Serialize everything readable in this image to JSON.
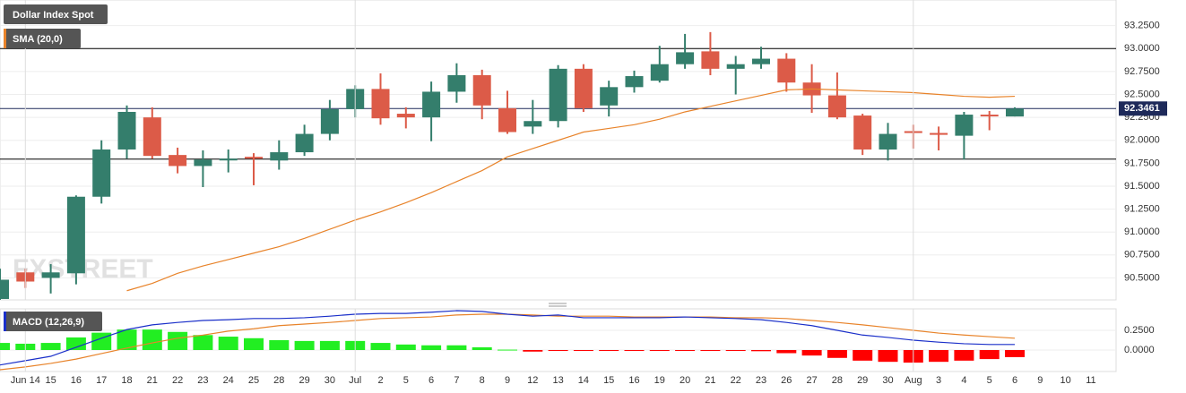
{
  "chart_data": [
    {
      "type": "candlestick",
      "title": "Dollar Index Spot",
      "watermark": "FXSTREET",
      "up_color": "#347e6c",
      "down_color": "#dc5b48",
      "open": [
        90.27,
        90.56,
        90.5,
        90.55,
        91.385,
        91.9,
        92.25,
        91.84,
        91.72,
        91.79,
        91.82,
        91.78,
        91.87,
        92.07,
        92.34,
        92.56,
        92.29,
        92.25,
        92.53,
        92.71,
        92.35,
        92.15,
        92.21,
        92.78,
        92.38,
        92.58,
        92.65,
        92.83,
        92.97,
        92.78,
        92.83,
        92.89,
        92.63,
        92.49,
        92.27,
        91.9,
        92.1,
        92.08,
        92.05,
        92.28,
        92.26,
        null,
        null,
        null
      ],
      "high": [
        90.6,
        90.6,
        90.65,
        91.4,
        92.0,
        92.38,
        92.36,
        91.92,
        91.89,
        91.9,
        91.86,
        92.0,
        92.17,
        92.44,
        92.6,
        92.73,
        92.36,
        92.64,
        92.84,
        92.77,
        92.54,
        92.44,
        92.82,
        92.83,
        92.65,
        92.76,
        93.03,
        93.16,
        93.18,
        92.92,
        93.02,
        92.95,
        92.83,
        92.74,
        92.29,
        92.19,
        92.17,
        92.15,
        92.31,
        92.32,
        92.36,
        null,
        null,
        null
      ],
      "low": [
        90.26,
        90.39,
        90.33,
        90.43,
        91.31,
        91.8,
        91.8,
        91.64,
        91.49,
        91.65,
        91.51,
        91.68,
        91.83,
        92.0,
        92.25,
        92.17,
        92.13,
        91.99,
        92.41,
        92.23,
        92.07,
        92.07,
        92.14,
        92.31,
        92.26,
        92.52,
        92.63,
        92.78,
        92.71,
        92.5,
        92.78,
        92.53,
        92.3,
        92.23,
        91.84,
        91.78,
        91.91,
        91.89,
        91.79,
        92.11,
        92.26,
        null,
        null,
        null
      ],
      "close": [
        90.48,
        90.46,
        90.56,
        91.385,
        91.9,
        92.31,
        91.83,
        91.72,
        91.79,
        91.8,
        91.8,
        91.87,
        92.07,
        92.34,
        92.56,
        92.24,
        92.25,
        92.53,
        92.71,
        92.38,
        92.09,
        92.21,
        92.78,
        92.35,
        92.58,
        92.7,
        92.83,
        92.96,
        92.78,
        92.83,
        92.89,
        92.63,
        92.49,
        92.25,
        91.9,
        92.07,
        92.08,
        92.06,
        92.28,
        92.27,
        92.3461,
        null,
        null,
        null
      ],
      "overlay": {
        "name": "SMA (20,0)",
        "color": "#e8832a",
        "values": [
          null,
          null,
          null,
          null,
          null,
          90.36,
          90.44,
          90.55,
          90.63,
          90.7,
          90.77,
          90.84,
          90.93,
          91.03,
          91.13,
          91.22,
          91.32,
          91.43,
          91.55,
          91.67,
          91.82,
          91.91,
          92.0,
          92.09,
          92.13,
          92.17,
          92.23,
          92.31,
          92.37,
          92.43,
          92.49,
          92.55,
          92.56,
          92.55,
          92.54,
          92.53,
          92.52,
          92.5,
          92.48,
          92.47,
          92.48,
          null,
          null,
          null
        ]
      },
      "hlines": [
        {
          "value": 93.0,
          "color": "#000000"
        },
        {
          "value": 91.795,
          "color": "#000000"
        }
      ],
      "last_price": 92.3461,
      "last_price_color": "#1e2a5a",
      "ylim": [
        90.26,
        93.53
      ],
      "yticks": [
        {
          "value": 90.5,
          "label": "90.5000"
        },
        {
          "value": 90.75,
          "label": "90.7500"
        },
        {
          "value": 91.0,
          "label": "91.0000"
        },
        {
          "value": 91.25,
          "label": "91.2500"
        },
        {
          "value": 91.5,
          "label": "91.5000"
        },
        {
          "value": 91.75,
          "label": "91.7500"
        },
        {
          "value": 92.0,
          "label": "92.0000"
        },
        {
          "value": 92.25,
          "label": "92.2500"
        },
        {
          "value": 92.5,
          "label": "92.5000"
        },
        {
          "value": 92.75,
          "label": "92.7500"
        },
        {
          "value": 93.0,
          "label": "93.0000"
        },
        {
          "value": 93.25,
          "label": "93.2500"
        }
      ],
      "grid": true
    },
    {
      "type": "macd",
      "title": "MACD (12,26,9)",
      "categories": [
        null,
        "Jun 14",
        "15",
        "16",
        "17",
        "18",
        "21",
        "22",
        "23",
        "24",
        "25",
        "28",
        "29",
        "30",
        "Jul",
        "2",
        "5",
        "6",
        "7",
        "8",
        "9",
        "12",
        "13",
        "14",
        "15",
        "16",
        "19",
        "20",
        "21",
        "22",
        "23",
        "26",
        "27",
        "28",
        "29",
        "30",
        "Aug",
        "3",
        "4",
        "5",
        "6",
        "9",
        "10",
        "11"
      ],
      "macd": {
        "color": "#1a2fc9",
        "values": [
          -0.19,
          -0.135,
          -0.08,
          0.035,
          0.15,
          0.26,
          0.32,
          0.35,
          0.375,
          0.385,
          0.4,
          0.4,
          0.41,
          0.43,
          0.455,
          0.465,
          0.465,
          0.48,
          0.5,
          0.49,
          0.455,
          0.43,
          0.445,
          0.41,
          0.41,
          0.41,
          0.41,
          0.42,
          0.41,
          0.4,
          0.385,
          0.35,
          0.31,
          0.25,
          0.19,
          0.16,
          0.125,
          0.1,
          0.08,
          0.07,
          0.07,
          null,
          null,
          null
        ]
      },
      "signal": {
        "color": "#e8832a",
        "values": [
          -0.25,
          -0.215,
          -0.17,
          -0.115,
          -0.045,
          0.025,
          0.09,
          0.15,
          0.19,
          0.24,
          0.27,
          0.31,
          0.33,
          0.35,
          0.375,
          0.4,
          0.41,
          0.42,
          0.445,
          0.455,
          0.455,
          0.445,
          0.43,
          0.43,
          0.43,
          0.42,
          0.42,
          0.42,
          0.42,
          0.41,
          0.41,
          0.4,
          0.375,
          0.35,
          0.32,
          0.285,
          0.25,
          0.215,
          0.19,
          0.17,
          0.15,
          null,
          null,
          null
        ]
      },
      "histogram": {
        "up_color": "#22ee22",
        "down_color": "#ff0000",
        "values": [
          0.09,
          0.08,
          0.09,
          0.16,
          0.22,
          0.26,
          0.26,
          0.23,
          0.19,
          0.17,
          0.15,
          0.125,
          0.115,
          0.115,
          0.115,
          0.09,
          0.07,
          0.06,
          0.06,
          0.035,
          0.005,
          -0.02,
          -0.005,
          -0.005,
          -0.005,
          -0.005,
          -0.005,
          -0.005,
          -0.01,
          -0.01,
          -0.015,
          -0.04,
          -0.07,
          -0.1,
          -0.135,
          -0.15,
          -0.16,
          -0.15,
          -0.135,
          -0.115,
          -0.09,
          null,
          null,
          null
        ]
      },
      "ylim": [
        -0.273,
        0.523
      ],
      "yticks": [
        {
          "value": 0,
          "label": "0.0000"
        },
        {
          "value": 0.25,
          "label": "0.2500"
        }
      ],
      "grid": true
    }
  ]
}
